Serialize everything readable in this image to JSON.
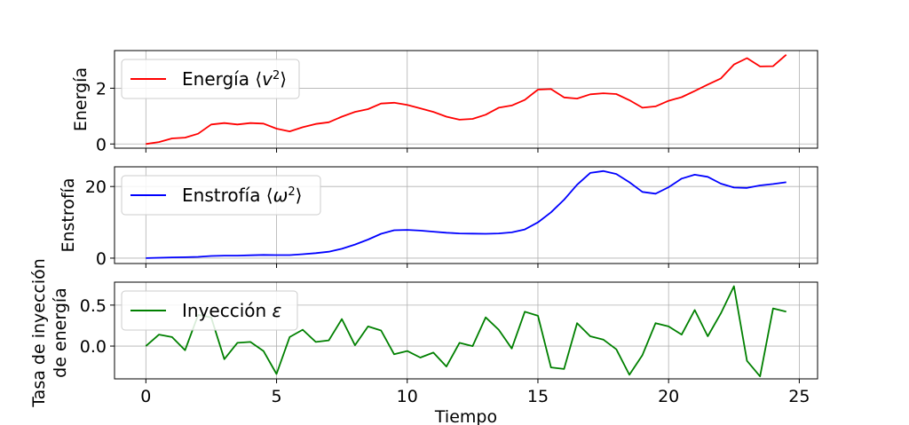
{
  "chart_data": [
    {
      "type": "line",
      "ylabel": "Energía",
      "ylim": [
        -0.15,
        3.35
      ],
      "yticks": [
        0,
        2
      ],
      "xlim": [
        -1.2,
        25.7
      ],
      "grid": true,
      "legend_position": "top-left",
      "series": [
        {
          "name": "Energía ⟨v²⟩",
          "color": "#ff0000",
          "x": [
            0,
            0.5,
            1,
            1.5,
            2,
            2.5,
            3,
            3.5,
            4,
            4.5,
            5,
            5.5,
            6,
            6.5,
            7,
            7.5,
            8,
            8.5,
            9,
            9.5,
            10,
            10.5,
            11,
            11.5,
            12,
            12.5,
            13,
            13.5,
            14,
            14.5,
            15,
            15.5,
            16,
            16.5,
            17,
            17.5,
            18,
            18.5,
            19,
            19.5,
            20,
            20.5,
            21,
            21.5,
            22,
            22.5,
            23,
            23.5,
            24,
            24.5
          ],
          "y": [
            0,
            0.07,
            0.2,
            0.23,
            0.37,
            0.7,
            0.75,
            0.7,
            0.75,
            0.73,
            0.55,
            0.45,
            0.6,
            0.72,
            0.78,
            0.98,
            1.15,
            1.25,
            1.45,
            1.48,
            1.4,
            1.28,
            1.15,
            0.98,
            0.87,
            0.9,
            1.05,
            1.3,
            1.38,
            1.58,
            1.95,
            1.97,
            1.67,
            1.63,
            1.78,
            1.82,
            1.79,
            1.57,
            1.3,
            1.35,
            1.55,
            1.68,
            1.9,
            2.13,
            2.35,
            2.85,
            3.08,
            2.78,
            2.79,
            3.2
          ]
        }
      ]
    },
    {
      "type": "line",
      "ylabel": "Enstrofía",
      "ylim": [
        -1.5,
        25.5
      ],
      "yticks": [
        0,
        20
      ],
      "xlim": [
        -1.2,
        25.7
      ],
      "grid": true,
      "legend_position": "top-left",
      "series": [
        {
          "name": "Enstrofía ⟨ω²⟩",
          "color": "#0000ff",
          "x": [
            0,
            0.5,
            1,
            1.5,
            2,
            2.5,
            3,
            3.5,
            4,
            4.5,
            5,
            5.5,
            6,
            6.5,
            7,
            7.5,
            8,
            8.5,
            9,
            9.5,
            10,
            10.5,
            11,
            11.5,
            12,
            12.5,
            13,
            13.5,
            14,
            14.5,
            15,
            15.5,
            16,
            16.5,
            17,
            17.5,
            18,
            18.5,
            19,
            19.5,
            20,
            20.5,
            21,
            21.5,
            22,
            22.5,
            23,
            23.5,
            24,
            24.5
          ],
          "y": [
            0,
            0.1,
            0.2,
            0.25,
            0.35,
            0.6,
            0.7,
            0.7,
            0.8,
            0.9,
            0.85,
            0.85,
            1.1,
            1.4,
            1.8,
            2.6,
            3.8,
            5.2,
            6.8,
            7.8,
            7.9,
            7.7,
            7.4,
            7.1,
            6.9,
            6.85,
            6.8,
            6.9,
            7.2,
            8.0,
            10.0,
            12.8,
            16.3,
            20.5,
            23.8,
            24.3,
            23.5,
            21.2,
            18.5,
            18.0,
            19.8,
            22.2,
            23.3,
            22.7,
            20.8,
            19.7,
            19.6,
            20.3,
            20.7,
            21.2
          ]
        }
      ]
    },
    {
      "type": "line",
      "ylabel": "Tasa de inyección\nde energía",
      "xlabel": "Tiempo",
      "ylim": [
        -0.4,
        0.78
      ],
      "yticks": [
        0.0,
        0.5
      ],
      "ytick_labels": [
        "0.0",
        "0.5"
      ],
      "xlim": [
        -1.2,
        25.7
      ],
      "xticks": [
        0,
        5,
        10,
        15,
        20,
        25
      ],
      "grid": true,
      "legend_position": "top-left",
      "series": [
        {
          "name": "Inyección ε",
          "color": "#008000",
          "x": [
            0,
            0.5,
            1,
            1.5,
            2,
            2.5,
            3,
            3.5,
            4,
            4.5,
            5,
            5.5,
            6,
            6.5,
            7,
            7.5,
            8,
            8.5,
            9,
            9.5,
            10,
            10.5,
            11,
            11.5,
            12,
            12.5,
            13,
            13.5,
            14,
            14.5,
            15,
            15.5,
            16,
            16.5,
            17,
            17.5,
            18,
            18.5,
            19,
            19.5,
            20,
            20.5,
            21,
            21.5,
            22,
            22.5,
            23,
            23.5,
            24,
            24.5
          ],
          "y": [
            0.0,
            0.14,
            0.11,
            -0.05,
            0.38,
            0.35,
            -0.16,
            0.04,
            0.05,
            -0.06,
            -0.34,
            0.11,
            0.2,
            0.05,
            0.07,
            0.33,
            0.01,
            0.24,
            0.19,
            -0.1,
            -0.06,
            -0.14,
            -0.08,
            -0.25,
            0.04,
            0.0,
            0.35,
            0.2,
            -0.03,
            0.42,
            0.37,
            -0.26,
            -0.28,
            0.28,
            0.12,
            0.08,
            -0.04,
            -0.35,
            -0.11,
            0.28,
            0.24,
            0.14,
            0.44,
            0.12,
            0.4,
            0.73,
            -0.18,
            -0.37,
            0.46,
            0.42
          ]
        }
      ]
    }
  ]
}
